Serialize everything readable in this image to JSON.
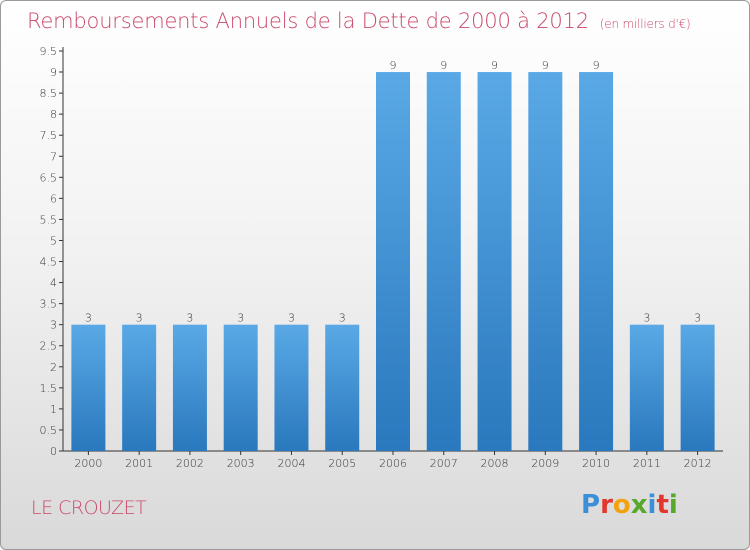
{
  "chart_data": {
    "type": "bar",
    "title": "Remboursements Annuels de la Dette de 2000 à 2012",
    "unit": "(en milliers d'€)",
    "categories": [
      "2000",
      "2001",
      "2002",
      "2003",
      "2004",
      "2005",
      "2006",
      "2007",
      "2008",
      "2009",
      "2010",
      "2011",
      "2012"
    ],
    "values": [
      3,
      3,
      3,
      3,
      3,
      3,
      9,
      9,
      9,
      9,
      9,
      3,
      3
    ],
    "ylim": [
      0,
      9.5
    ],
    "yticks": [
      0,
      0.5,
      1,
      1.5,
      2,
      2.5,
      3,
      3.5,
      4,
      4.5,
      5,
      5.5,
      6,
      6.5,
      7,
      7.5,
      8,
      8.5,
      9,
      9.5
    ],
    "ytick_labels": [
      "0",
      "0.5",
      "1",
      "1.5",
      "2",
      "2.5",
      "3",
      "3.5",
      "4",
      "4.5",
      "5",
      "5.5",
      "6",
      "6.5",
      "7",
      "7.5",
      "8",
      "8.5",
      "9",
      "9.5"
    ],
    "grid": false,
    "bar_color_top": "#5aa9e6",
    "bar_color_bottom": "#2a78bd"
  },
  "footer": {
    "commune": "LE CROUZET",
    "logo_letters": [
      "P",
      "r",
      "o",
      "x",
      "i",
      "t",
      "i"
    ]
  }
}
